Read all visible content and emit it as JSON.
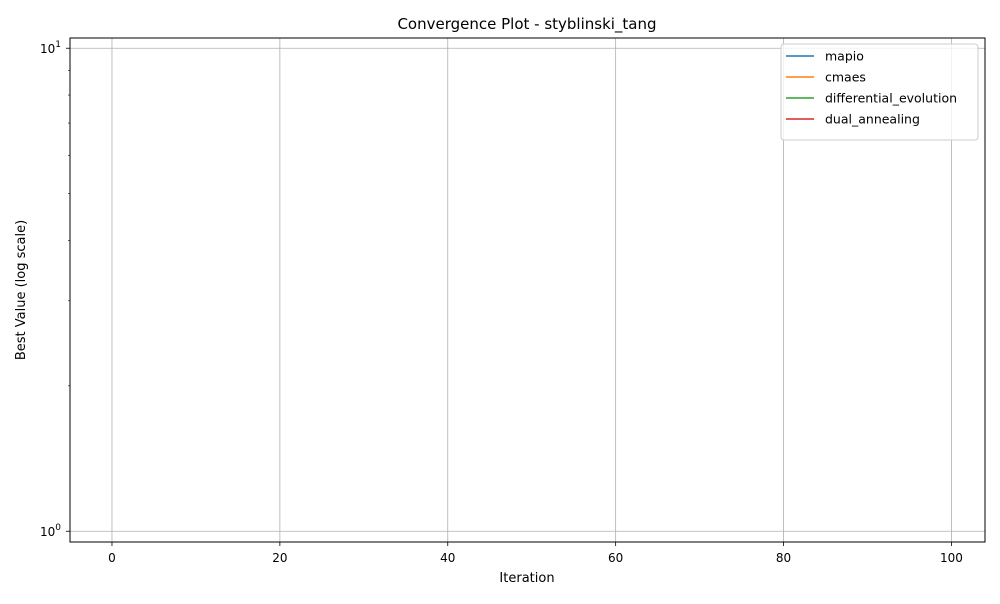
{
  "chart_data": {
    "type": "line",
    "title": "Convergence Plot - styblinski_tang",
    "xlabel": "Iteration",
    "ylabel": "Best Value (log scale)",
    "xlim": [
      -5,
      104
    ],
    "ylim": [
      0.95,
      10.5
    ],
    "yscale": "log",
    "grid": true,
    "legend_position": "top-right",
    "x_ticks": [
      {
        "value": 0,
        "label": "0"
      },
      {
        "value": 20,
        "label": "20"
      },
      {
        "value": 40,
        "label": "40"
      },
      {
        "value": 60,
        "label": "60"
      },
      {
        "value": 80,
        "label": "80"
      },
      {
        "value": 100,
        "label": "100"
      }
    ],
    "y_ticks": [
      {
        "value": 1,
        "base": "10",
        "exp": "0"
      },
      {
        "value": 10,
        "base": "10",
        "exp": "1"
      }
    ],
    "series": [
      {
        "name": "mapio",
        "color": "#1f77b4",
        "x": [],
        "values": []
      },
      {
        "name": "cmaes",
        "color": "#ff7f0e",
        "x": [],
        "values": []
      },
      {
        "name": "differential_evolution",
        "color": "#2ca02c",
        "x": [],
        "values": []
      },
      {
        "name": "dual_annealing",
        "color": "#d62728",
        "x": [],
        "values": []
      }
    ]
  }
}
